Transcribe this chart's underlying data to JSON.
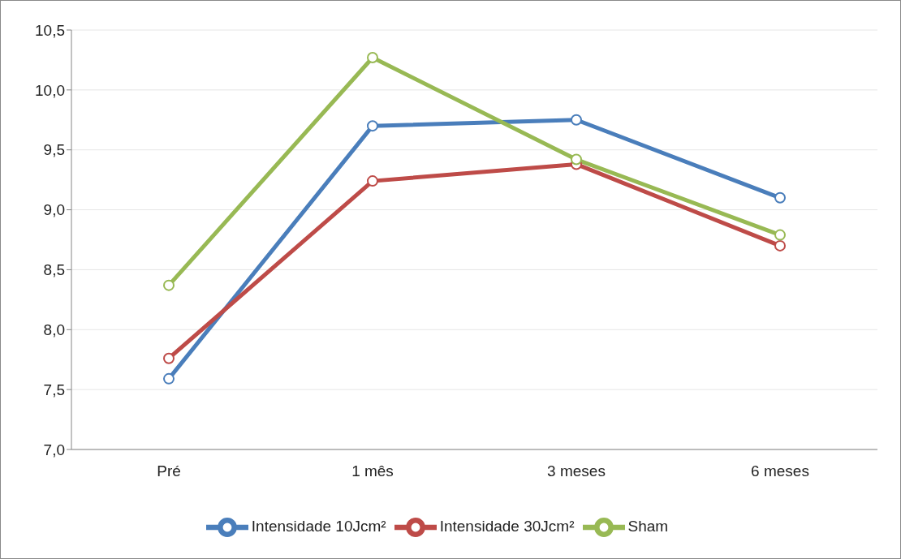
{
  "chart_data": {
    "type": "line",
    "categories": [
      "Pré",
      "1 mês",
      "3 meses",
      "6 meses"
    ],
    "series": [
      {
        "name": "Intensidade 10Jcm²",
        "color": "#4a7ebb",
        "values": [
          7.59,
          9.7,
          9.75,
          9.1
        ]
      },
      {
        "name": "Intensidade 30Jcm²",
        "color": "#be4b48",
        "values": [
          7.76,
          9.24,
          9.38,
          8.7
        ]
      },
      {
        "name": "Sham",
        "color": "#98b954",
        "values": [
          8.37,
          10.27,
          9.42,
          8.79
        ]
      }
    ],
    "ylim": [
      7,
      10.5
    ],
    "yticks": [
      {
        "value": 7,
        "label": "7,0"
      },
      {
        "value": 7.5,
        "label": "7,5"
      },
      {
        "value": 8,
        "label": "8,0"
      },
      {
        "value": 8.5,
        "label": "8,5"
      },
      {
        "value": 9,
        "label": "9,0"
      },
      {
        "value": 9.5,
        "label": "9,5"
      },
      {
        "value": 10,
        "label": "10,0"
      },
      {
        "value": 10.5,
        "label": "10,5"
      }
    ],
    "grid": "y",
    "legend": "bottom",
    "marker": "circle",
    "line_style": "solid"
  }
}
